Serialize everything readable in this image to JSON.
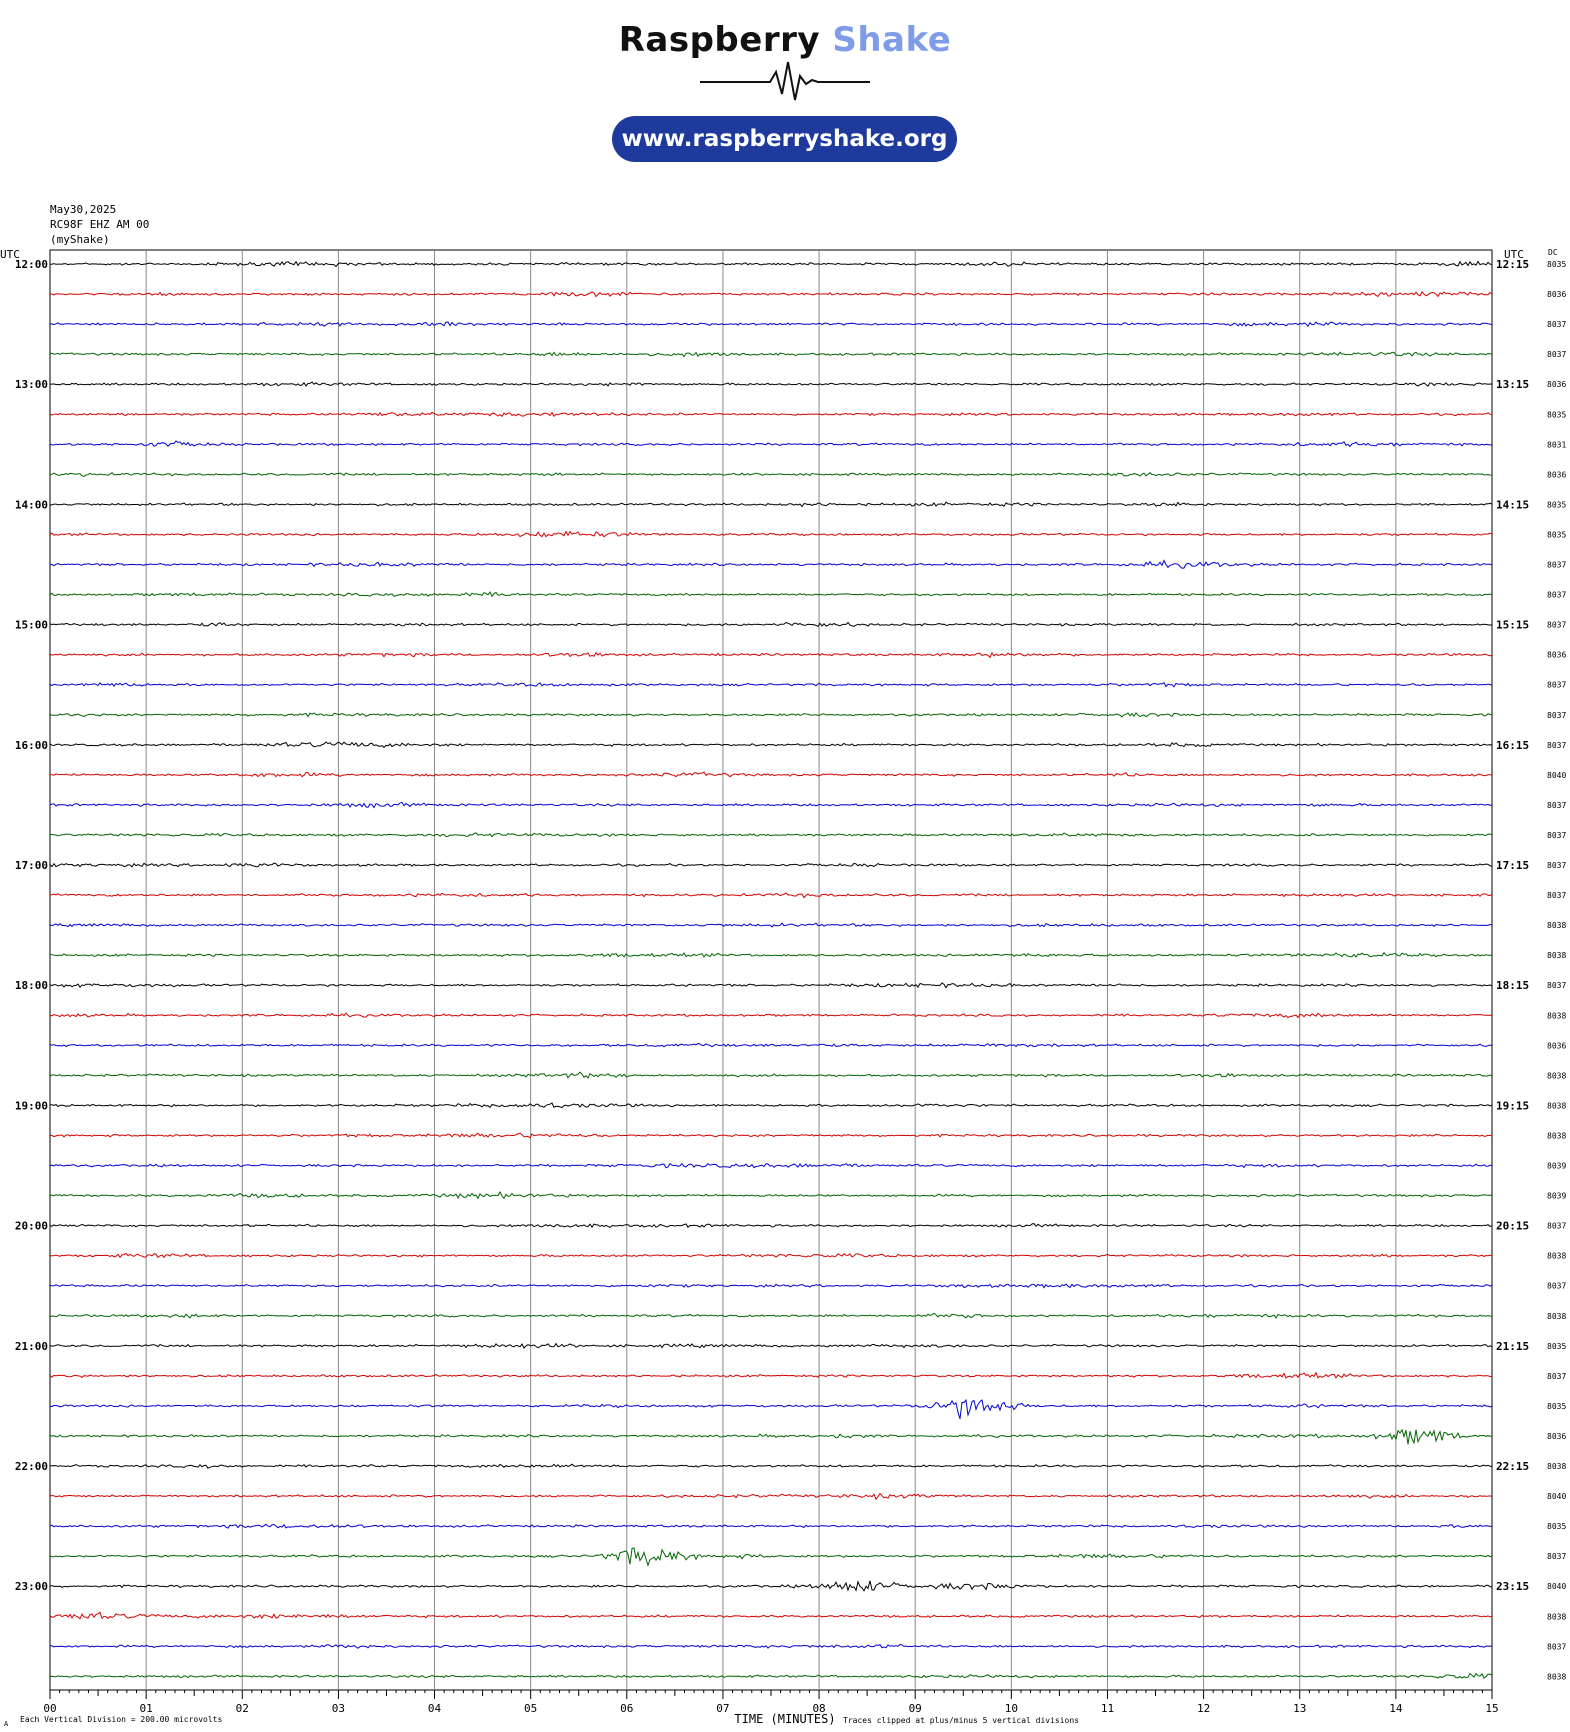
{
  "logo": {
    "word1": "Raspberry",
    "word2": "Shake",
    "url": "www.raspberryshake.org",
    "accent": "#7f9ce8",
    "pill_color": "#1e3a9c"
  },
  "header": {
    "date": "May30,2025",
    "station": "RC98F EHZ AM 00",
    "network": "(myShake)"
  },
  "labels": {
    "utc_left": "UTC",
    "utc_right": "UTC",
    "dc": "DC",
    "x_axis": "TIME (MINUTES)",
    "footer_left": "Each Vertical Division = 200.00 microvolts",
    "footer_mark": "A",
    "footer_right": "Traces clipped at plus/minus 5 vertical divisions"
  },
  "chart_data": {
    "type": "line",
    "title": "",
    "xlabel": "TIME (MINUTES)",
    "xlim": [
      0,
      15
    ],
    "x_ticks": [
      "00",
      "01",
      "02",
      "03",
      "04",
      "05",
      "06",
      "07",
      "08",
      "09",
      "10",
      "11",
      "12",
      "13",
      "14",
      "15"
    ],
    "trace_colors": [
      "#000000",
      "#d40000",
      "#0000d4",
      "#006400"
    ],
    "left_hour_labels": [
      "12:00",
      "13:00",
      "14:00",
      "15:00",
      "16:00",
      "17:00",
      "18:00",
      "19:00",
      "20:00",
      "21:00",
      "22:00",
      "23:00"
    ],
    "right_hour_labels": [
      "12:15",
      "13:15",
      "14:15",
      "15:15",
      "16:15",
      "17:15",
      "18:15",
      "19:15",
      "20:15",
      "21:15",
      "22:15",
      "23:15"
    ],
    "dc_offsets": [
      "8035",
      "8036",
      "8037",
      "8037",
      "8036",
      "8035",
      "8031",
      "8036",
      "8035",
      "8035",
      "8037",
      "8037",
      "8037",
      "8036",
      "8037",
      "8037",
      "8037",
      "8040",
      "8037",
      "8037",
      "8037",
      "8037",
      "8038",
      "8038",
      "8037",
      "8038",
      "8036",
      "8038",
      "8038",
      "8038",
      "8039",
      "8039",
      "8037",
      "8038",
      "8037",
      "8038",
      "8035",
      "8037",
      "8035",
      "8036",
      "8038",
      "8040",
      "8035",
      "8037",
      "8040",
      "8038",
      "8037",
      "8038"
    ],
    "events": [
      {
        "row": 38,
        "x_min": 9.6,
        "amplitude": 2.0
      },
      {
        "row": 39,
        "x_min": 14.25,
        "amplitude": 1.4
      },
      {
        "row": 43,
        "x_min": 6.2,
        "amplitude": 1.5
      },
      {
        "row": 44,
        "x_min": 8.4,
        "amplitude": 0.8
      }
    ]
  }
}
